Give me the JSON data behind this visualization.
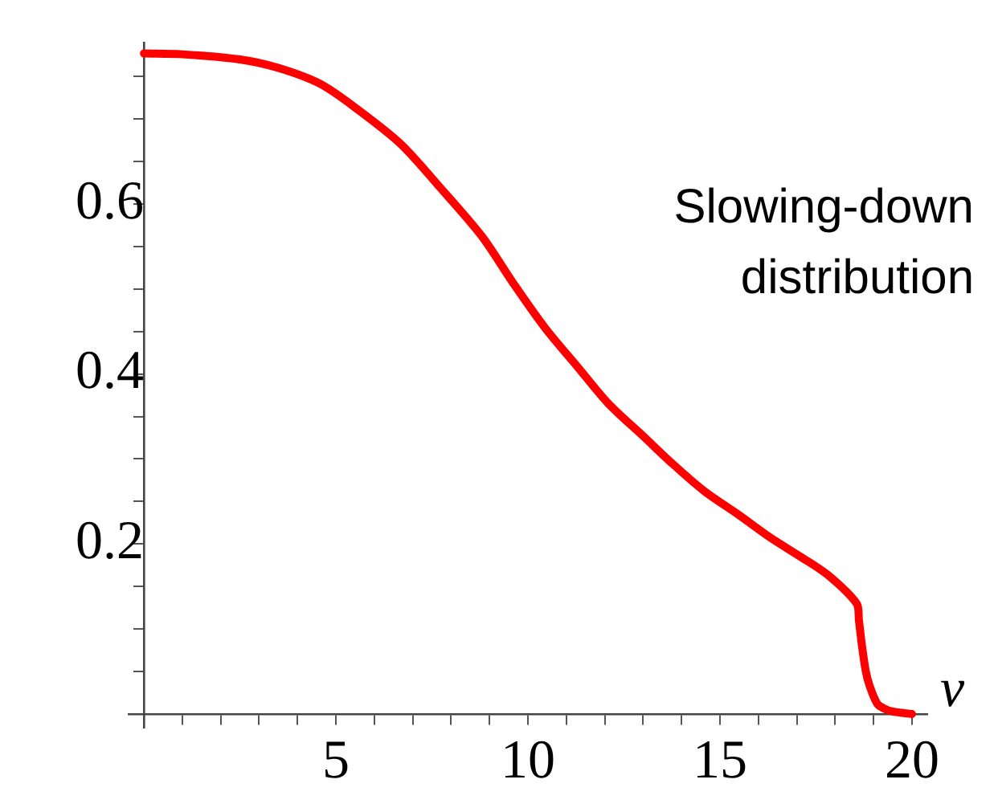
{
  "chart_data": {
    "type": "line",
    "xlabel": "v",
    "annotations": [
      "Slowing-down\ndistribution"
    ],
    "x": [
      0,
      1,
      2.5,
      3.5,
      4.6,
      5.6,
      6.7,
      7.7,
      8.8,
      9.6,
      10.45,
      11.3,
      12.1,
      13,
      13.8,
      14.6,
      15.5,
      16.3,
      17.1,
      17.8,
      18.56,
      18.62,
      18.7,
      18.8,
      18.9,
      19.1,
      19.3,
      19.5,
      20
    ],
    "series": [
      {
        "color": "#ff0000",
        "values": [
          0.777,
          0.776,
          0.77,
          0.76,
          0.741,
          0.71,
          0.67,
          0.62,
          0.562,
          0.508,
          0.454,
          0.408,
          0.365,
          0.327,
          0.293,
          0.262,
          0.234,
          0.208,
          0.185,
          0.164,
          0.13,
          0.11,
          0.08,
          0.05,
          0.033,
          0.012,
          0.006,
          0.003,
          0
        ]
      }
    ],
    "xlim": [
      -0.4,
      20.4
    ],
    "ylim": [
      -0.016,
      0.79
    ],
    "xticks": [
      {
        "value": 1,
        "label": null
      },
      {
        "value": 2,
        "label": null
      },
      {
        "value": 3,
        "label": null
      },
      {
        "value": 4,
        "label": null
      },
      5,
      {
        "value": 6,
        "label": null
      },
      {
        "value": 7,
        "label": null
      },
      {
        "value": 8,
        "label": null
      },
      {
        "value": 9,
        "label": null
      },
      10,
      {
        "value": 11,
        "label": null
      },
      {
        "value": 12,
        "label": null
      },
      {
        "value": 13,
        "label": null
      },
      {
        "value": 14,
        "label": null
      },
      15,
      {
        "value": 16,
        "label": null
      },
      {
        "value": 17,
        "label": null
      },
      {
        "value": 18,
        "label": null
      },
      {
        "value": 19,
        "label": null
      },
      20
    ],
    "yticks": [
      {
        "value": 0.05,
        "label": null
      },
      {
        "value": 0.1,
        "label": null
      },
      {
        "value": 0.15,
        "label": null
      },
      {
        "value": 0.2,
        "label": "0.2"
      },
      {
        "value": 0.25,
        "label": null
      },
      {
        "value": 0.3,
        "label": null
      },
      {
        "value": 0.35,
        "label": null
      },
      {
        "value": 0.4,
        "label": "0.4"
      },
      {
        "value": 0.45,
        "label": null
      },
      {
        "value": 0.5,
        "label": null
      },
      {
        "value": 0.55,
        "label": null
      },
      {
        "value": 0.6,
        "label": "0.6"
      },
      {
        "value": 0.65,
        "label": null
      },
      {
        "value": 0.7,
        "label": null
      },
      {
        "value": 0.75,
        "label": null
      }
    ],
    "grid": false,
    "legend": false,
    "marker": "none",
    "line_style": "solid"
  }
}
